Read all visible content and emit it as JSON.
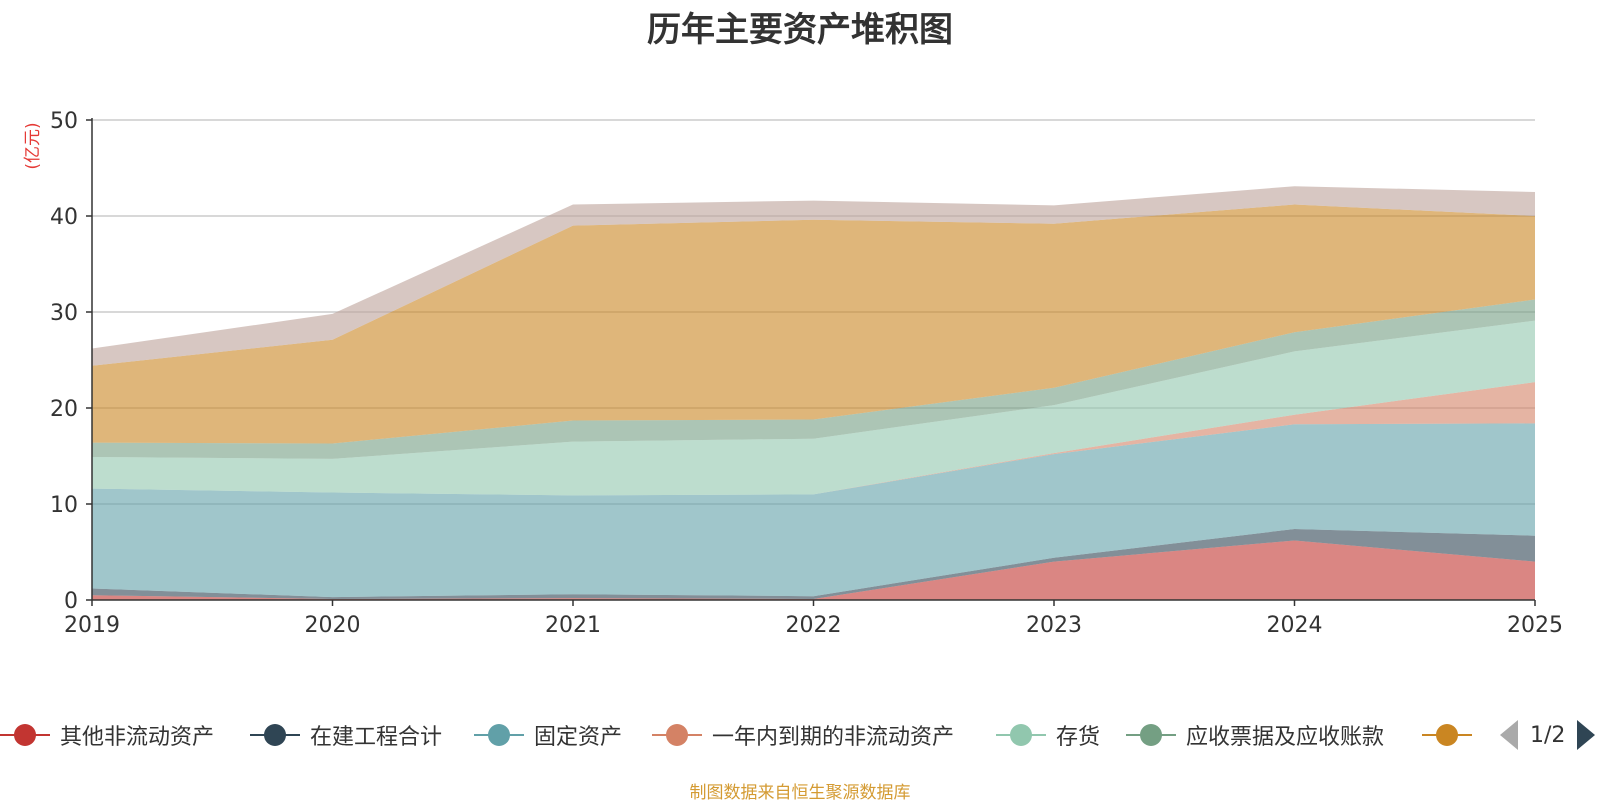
{
  "chart_data": {
    "type": "area",
    "stacked": true,
    "title": "历年主要资产堆积图",
    "ylabel": "(亿元)",
    "xlabel": "",
    "categories": [
      "2019",
      "2020",
      "2021",
      "2022",
      "2023",
      "2024",
      "2025"
    ],
    "ylim": [
      0,
      50
    ],
    "yticks": [
      0,
      10,
      20,
      30,
      40,
      50
    ],
    "grid": true,
    "series": [
      {
        "name": "其他非流动资产",
        "color": "#c23531",
        "values": [
          0.5,
          0.1,
          0.2,
          0.1,
          4.0,
          6.2,
          4.0
        ]
      },
      {
        "name": "在建工程合计",
        "color": "#2f4554",
        "values": [
          0.7,
          0.2,
          0.4,
          0.3,
          0.4,
          1.2,
          2.7
        ]
      },
      {
        "name": "固定资产",
        "color": "#61a0a8",
        "values": [
          10.4,
          10.9,
          10.3,
          10.6,
          10.8,
          10.9,
          11.7
        ]
      },
      {
        "name": "一年内到期的非流动资产",
        "color": "#d48265",
        "values": [
          0.0,
          0.0,
          0.0,
          0.0,
          0.1,
          1.0,
          4.3
        ]
      },
      {
        "name": "存货",
        "color": "#91c7ae",
        "values": [
          3.3,
          3.5,
          5.6,
          5.8,
          5.0,
          6.6,
          6.4
        ]
      },
      {
        "name": "应收票据及应收账款",
        "color": "#749f83",
        "values": [
          1.5,
          1.6,
          2.2,
          2.0,
          1.8,
          2.0,
          2.2
        ]
      },
      {
        "name": "",
        "color": "#ca8622",
        "values": [
          8.0,
          10.8,
          20.3,
          20.8,
          17.1,
          13.3,
          8.7
        ]
      },
      {
        "name": "",
        "color": "#bda29a",
        "values": [
          1.8,
          2.7,
          2.2,
          2.0,
          1.9,
          1.9,
          2.5
        ]
      }
    ]
  },
  "legend": {
    "items": [
      {
        "label": "其他非流动资产",
        "color": "#c23531"
      },
      {
        "label": "在建工程合计",
        "color": "#2f4554"
      },
      {
        "label": "固定资产",
        "color": "#61a0a8"
      },
      {
        "label": "一年内到期的非流动资产",
        "color": "#d48265"
      },
      {
        "label": "存货",
        "color": "#91c7ae"
      },
      {
        "label": "应收票据及应收账款",
        "color": "#749f83"
      },
      {
        "label": "",
        "color": "#ca8622"
      }
    ],
    "page_text": "1/2"
  },
  "source_note": "制图数据来自恒生聚源数据库"
}
